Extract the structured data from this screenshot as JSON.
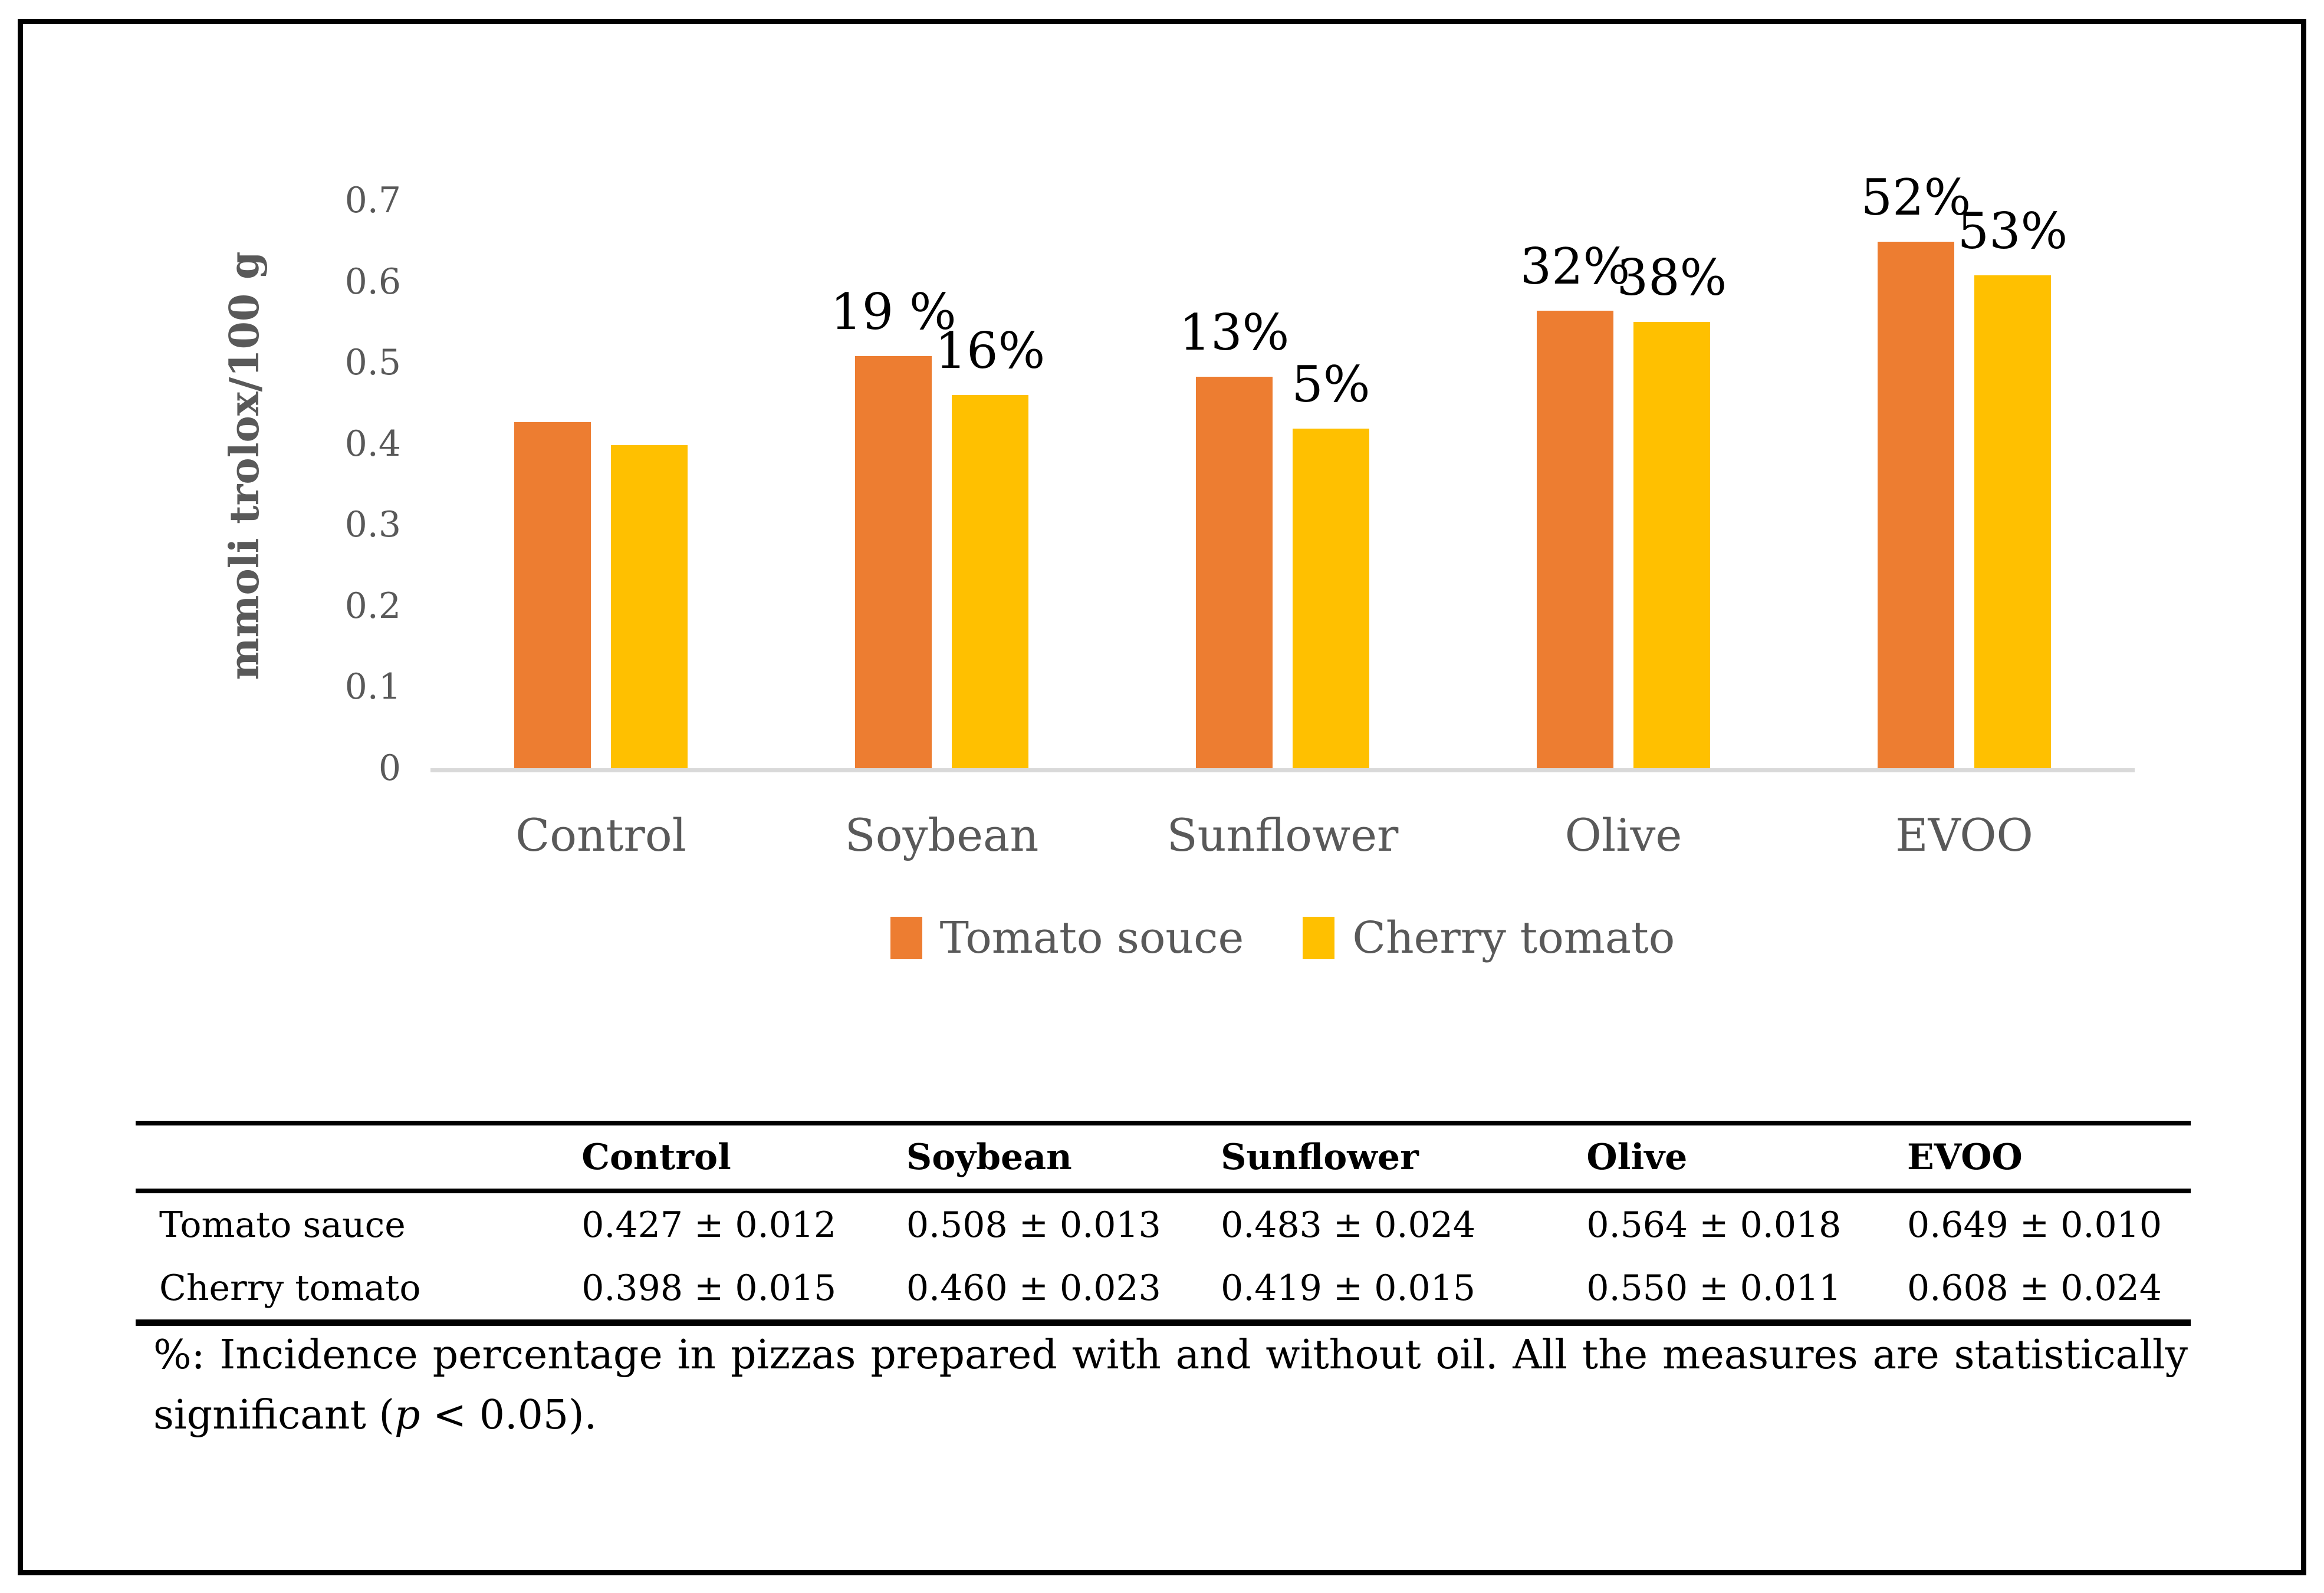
{
  "chart_data": {
    "type": "bar",
    "title": "",
    "xlabel": "",
    "ylabel": "mmoli trolox/100 g",
    "ymax": 0.7,
    "yticks": [
      {
        "value": 0.7,
        "label": "0.7"
      },
      {
        "value": 0.6,
        "label": "0.6"
      },
      {
        "value": 0.5,
        "label": "0.5"
      },
      {
        "value": 0.4,
        "label": "0.4"
      },
      {
        "value": 0.3,
        "label": "0.3"
      },
      {
        "value": 0.2,
        "label": "0.2"
      },
      {
        "value": 0.1,
        "label": "0.1"
      },
      {
        "value": 0,
        "label": "0"
      }
    ],
    "categories": [
      "Control",
      "Soybean",
      "Sunflower",
      "Olive",
      "EVOO"
    ],
    "series": [
      {
        "name": "Tomato souce",
        "color": "#ED7D31",
        "values": [
          0.427,
          0.508,
          0.483,
          0.564,
          0.649
        ],
        "bar_labels": [
          "",
          "19 %",
          "13%",
          "32%",
          "52%"
        ]
      },
      {
        "name": "Cherry tomato",
        "color": "#FFC000",
        "values": [
          0.398,
          0.46,
          0.419,
          0.55,
          0.608
        ],
        "bar_labels": [
          "",
          "16%",
          "5%",
          "38%",
          "53%"
        ]
      }
    ],
    "legend_position": "bottom",
    "grid": false,
    "axis_line_color": "#D9D9D9",
    "text_color": "#595959",
    "label_color": "#000000"
  },
  "table": {
    "headers": [
      "",
      "Control",
      "Soybean",
      "Sunflower",
      "Olive",
      "EVOO"
    ],
    "rows": [
      {
        "label": "Tomato sauce",
        "values": [
          "0.427 ± 0.012",
          "0.508 ± 0.013",
          "0.483 ± 0.024",
          "0.564 ± 0.018",
          "0.649 ± 0.010"
        ]
      },
      {
        "label": "Cherry tomato",
        "values": [
          "0.398 ± 0.015",
          "0.460 ± 0.023",
          "0.419 ± 0.015",
          "0.550 ± 0.011",
          "0.608 ± 0.024"
        ]
      }
    ]
  },
  "footnote": {
    "part1": "%: Incidence percentage in pizzas prepared with and without oil. All the measures are statistically significant (",
    "p_italic": "p",
    "part2": " < 0.05)."
  }
}
